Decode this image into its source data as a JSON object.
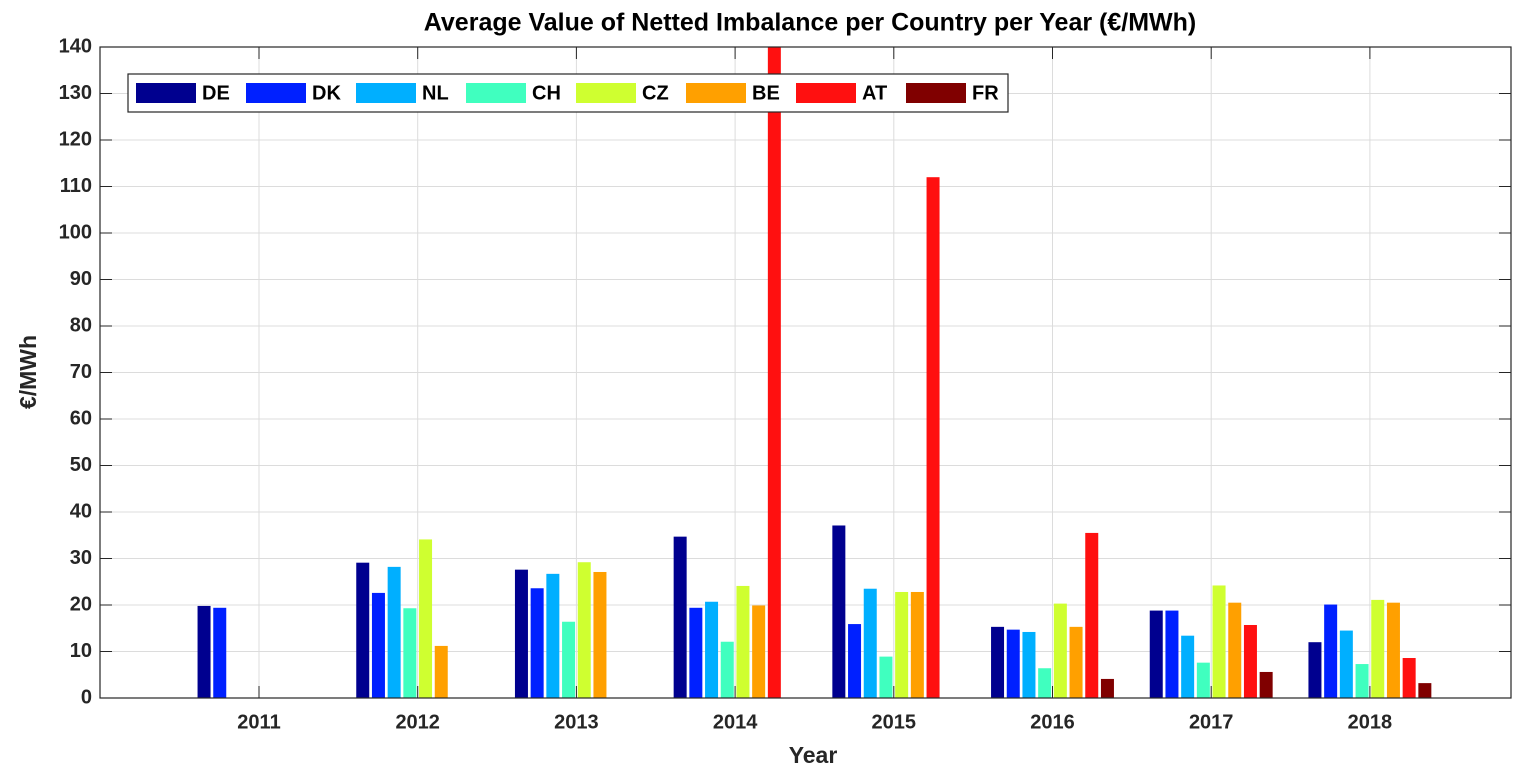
{
  "chart_data": {
    "type": "bar",
    "title": "Average Value of Netted Imbalance per Country per Year (€/MWh)",
    "x_label": "Year",
    "y_label": "€/MWh",
    "categories": [
      "2011",
      "2012",
      "2013",
      "2014",
      "2015",
      "2016",
      "2017",
      "2018"
    ],
    "series": [
      {
        "name": "DE",
        "color": "#00008f",
        "values": [
          19.8,
          29.1,
          27.6,
          34.7,
          37.1,
          15.3,
          18.8,
          12.0
        ]
      },
      {
        "name": "DK",
        "color": "#0020ff",
        "values": [
          19.4,
          22.6,
          23.6,
          19.4,
          15.9,
          14.7,
          18.8,
          20.1
        ]
      },
      {
        "name": "NL",
        "color": "#00afff",
        "values": [
          null,
          28.2,
          26.7,
          20.7,
          23.5,
          14.2,
          13.4,
          14.5
        ]
      },
      {
        "name": "CH",
        "color": "#40ffbf",
        "values": [
          null,
          19.3,
          16.4,
          12.1,
          8.9,
          6.4,
          7.6,
          7.3
        ]
      },
      {
        "name": "CZ",
        "color": "#cfff30",
        "values": [
          null,
          34.1,
          29.2,
          24.1,
          22.8,
          20.3,
          24.2,
          21.1
        ]
      },
      {
        "name": "BE",
        "color": "#ffa000",
        "values": [
          null,
          11.2,
          27.1,
          19.9,
          22.8,
          15.3,
          20.5,
          20.5
        ]
      },
      {
        "name": "AT",
        "color": "#ff1010",
        "values": [
          null,
          null,
          null,
          145,
          112,
          35.5,
          15.7,
          8.6
        ]
      },
      {
        "name": "FR",
        "color": "#800000",
        "values": [
          null,
          null,
          null,
          null,
          null,
          4.1,
          5.6,
          3.2
        ]
      }
    ],
    "ylim": [
      0,
      140
    ],
    "yticks": [
      0,
      10,
      20,
      30,
      40,
      50,
      60,
      70,
      80,
      90,
      100,
      110,
      120,
      130,
      140
    ],
    "grid": true,
    "legend_position": "top-left"
  }
}
